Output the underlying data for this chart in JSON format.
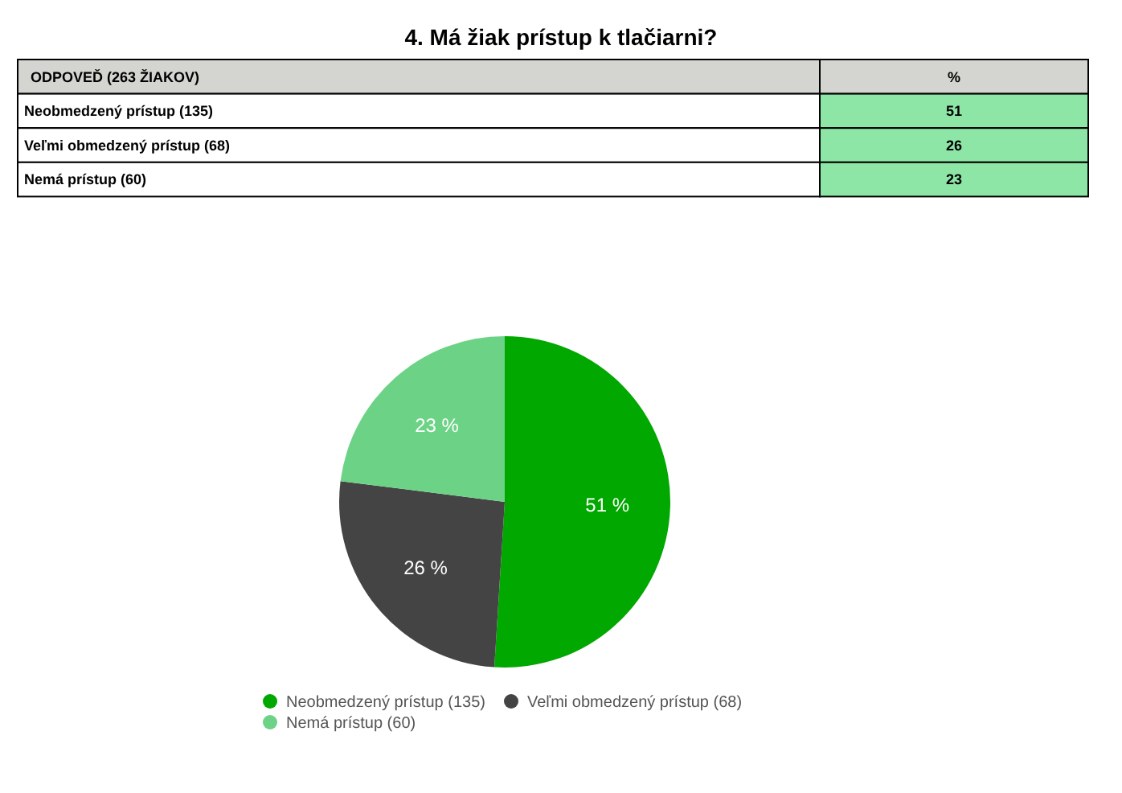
{
  "chart_data": [
    {
      "type": "other",
      "title": "4. Má žiak prístup k tlačiarni?",
      "categories": [
        "Neobmedzený prístup (135)",
        "Veľmi obmedzený prístup (68)",
        "Nemá prístup (60)"
      ],
      "values": [
        51,
        26,
        23
      ],
      "annotations": [
        "ODPOVEĎ (263 ŽIAKOV)",
        "%"
      ],
      "data_labels": true
    },
    {
      "type": "pie",
      "categories": [
        "Neobmedzený prístup (135)",
        "Veľmi obmedzený prístup (68)",
        "Nemá prístup (60)"
      ],
      "values": [
        51,
        26,
        23
      ],
      "colors": [
        "#00a800",
        "#444444",
        "#6cd386"
      ],
      "value_labels": [
        "51 %",
        "26 %",
        "23 %"
      ],
      "legend": "bottom"
    }
  ]
}
